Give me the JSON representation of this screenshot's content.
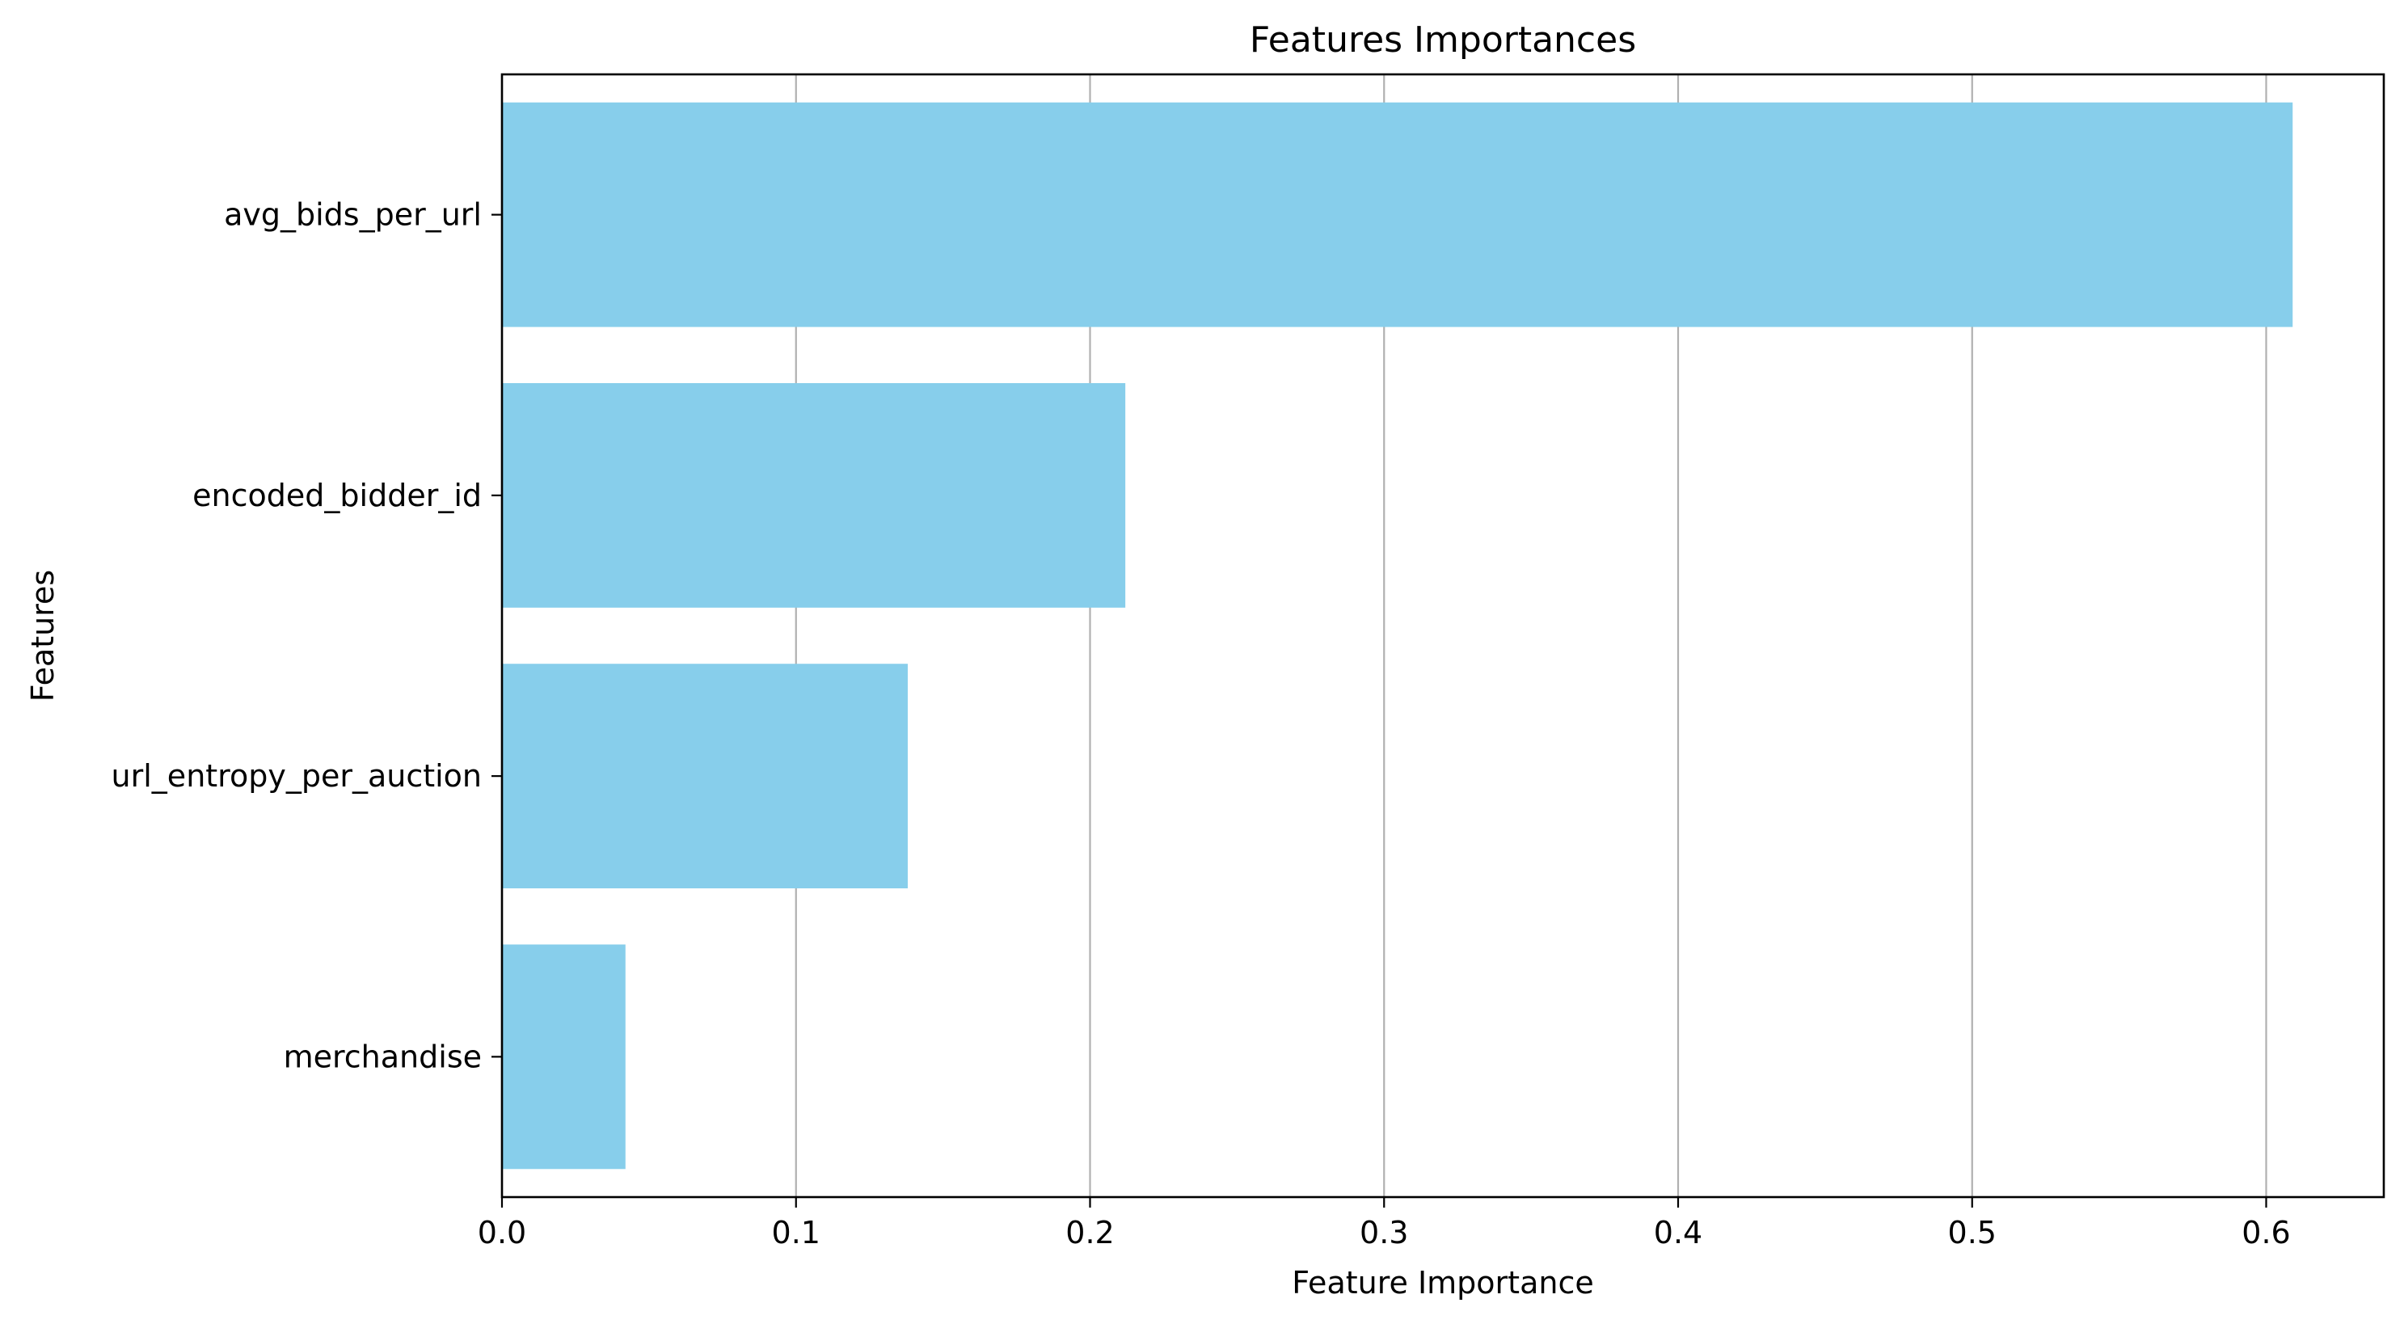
{
  "chart_data": {
    "type": "bar",
    "orientation": "horizontal",
    "title": "Features Importances",
    "xlabel": "Feature Importance",
    "ylabel": "Features",
    "categories": [
      "avg_bids_per_url",
      "encoded_bidder_id",
      "url_entropy_per_auction",
      "merchandise"
    ],
    "values": [
      0.609,
      0.212,
      0.138,
      0.042
    ],
    "xlim": [
      0,
      0.64
    ],
    "xticks": [
      0.0,
      0.1,
      0.2,
      0.3,
      0.4,
      0.5,
      0.6
    ],
    "xtick_labels": [
      "0.0",
      "0.1",
      "0.2",
      "0.3",
      "0.4",
      "0.5",
      "0.6"
    ],
    "bar_color": "#87CEEB",
    "grid": "x-axis vertical lines",
    "legend": "none"
  }
}
